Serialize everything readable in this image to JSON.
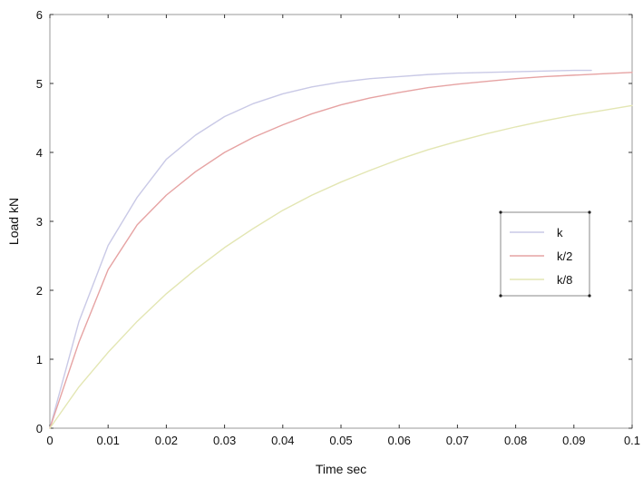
{
  "chart_data": {
    "type": "line",
    "title": "",
    "xlabel": "Time sec",
    "ylabel": "Load kN",
    "xlim": [
      0,
      0.1
    ],
    "ylim": [
      0,
      6
    ],
    "xticks": [
      0,
      0.01,
      0.02,
      0.03,
      0.04,
      0.05,
      0.06,
      0.07,
      0.08,
      0.09,
      0.1
    ],
    "xtick_labels": [
      "0",
      "0.01",
      "0.02",
      "0.03",
      "0.04",
      "0.05",
      "0.06",
      "0.07",
      "0.08",
      "0.09",
      "0.1"
    ],
    "yticks": [
      0,
      1,
      2,
      3,
      4,
      5,
      6
    ],
    "ytick_labels": [
      "0",
      "1",
      "2",
      "3",
      "4",
      "5",
      "6"
    ],
    "grid": false,
    "legend_position": "right-center",
    "x": [
      0,
      0.005,
      0.01,
      0.015,
      0.02,
      0.025,
      0.03,
      0.035,
      0.04,
      0.045,
      0.05,
      0.055,
      0.06,
      0.065,
      0.07,
      0.075,
      0.08,
      0.085,
      0.09,
      0.093,
      0.1
    ],
    "series": [
      {
        "name": "k",
        "color": "#c9c9e6",
        "x": [
          0,
          0.005,
          0.01,
          0.015,
          0.02,
          0.025,
          0.03,
          0.035,
          0.04,
          0.045,
          0.05,
          0.055,
          0.06,
          0.065,
          0.07,
          0.075,
          0.08,
          0.085,
          0.09,
          0.093
        ],
        "values": [
          0,
          1.55,
          2.65,
          3.35,
          3.9,
          4.25,
          4.52,
          4.71,
          4.85,
          4.95,
          5.02,
          5.07,
          5.1,
          5.13,
          5.15,
          5.16,
          5.17,
          5.18,
          5.19,
          5.19
        ]
      },
      {
        "name": "k/2",
        "color": "#e6a3a3",
        "x": [
          0,
          0.005,
          0.01,
          0.015,
          0.02,
          0.025,
          0.03,
          0.035,
          0.04,
          0.045,
          0.05,
          0.055,
          0.06,
          0.065,
          0.07,
          0.075,
          0.08,
          0.085,
          0.09,
          0.095,
          0.1
        ],
        "values": [
          0,
          1.25,
          2.3,
          2.95,
          3.38,
          3.72,
          4.0,
          4.22,
          4.4,
          4.56,
          4.69,
          4.79,
          4.87,
          4.94,
          4.99,
          5.03,
          5.07,
          5.1,
          5.12,
          5.14,
          5.16
        ]
      },
      {
        "name": "k/8",
        "color": "#e3e6b3",
        "x": [
          0,
          0.005,
          0.01,
          0.015,
          0.02,
          0.025,
          0.03,
          0.035,
          0.04,
          0.045,
          0.05,
          0.055,
          0.06,
          0.065,
          0.07,
          0.075,
          0.08,
          0.085,
          0.09,
          0.095,
          0.1
        ],
        "values": [
          0,
          0.6,
          1.1,
          1.55,
          1.95,
          2.3,
          2.62,
          2.9,
          3.16,
          3.38,
          3.57,
          3.74,
          3.9,
          4.04,
          4.16,
          4.27,
          4.37,
          4.46,
          4.54,
          4.61,
          4.68
        ]
      }
    ]
  }
}
